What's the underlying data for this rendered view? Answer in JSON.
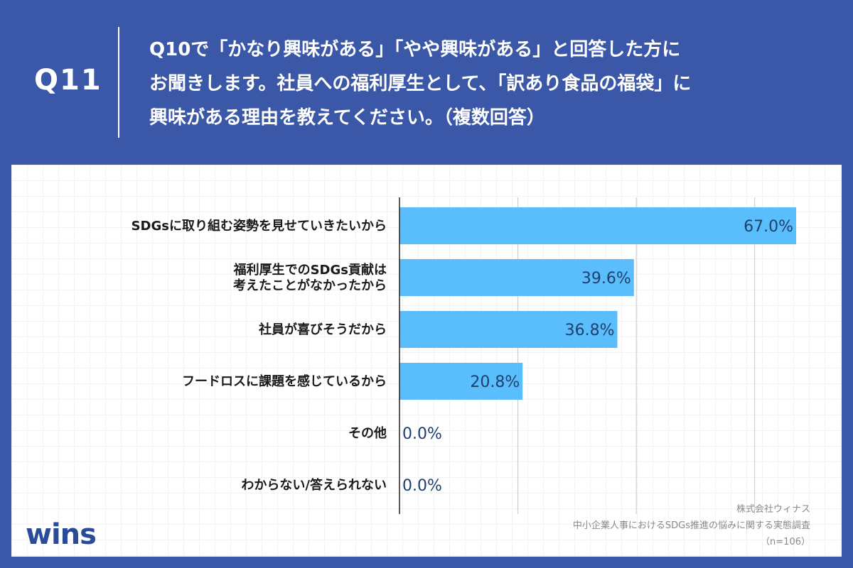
{
  "header": {
    "q_number": "Q11",
    "question_lines": [
      "Q10で「かなり興味がある」「やや興味がある」と回答した方に",
      "お聞きします。社員への福利厚生として、「訳あり食品の福袋」に",
      "興味がある理由を教えてください。（複数回答）"
    ]
  },
  "chart_data": {
    "type": "bar",
    "orientation": "horizontal",
    "categories": [
      [
        "SDGsに取り組む姿勢を見せていきたいから"
      ],
      [
        "福利厚生でのSDGs貢献は",
        "考えたことがなかったから"
      ],
      [
        "社員が喜びそうだから"
      ],
      [
        "フードロスに課題を感じているから"
      ],
      [
        "その他"
      ],
      [
        "わからない/答えられない"
      ]
    ],
    "values": [
      67.0,
      39.6,
      36.8,
      20.8,
      0.0,
      0.0
    ],
    "value_labels": [
      "67.0%",
      "39.6%",
      "36.8%",
      "20.8%",
      "0.0%",
      "0.0%"
    ],
    "xlim": [
      0,
      70
    ],
    "grid": true,
    "bar_color": "#5bbefc"
  },
  "footer": {
    "logo_text": "wins",
    "company": "株式会社ウィナス",
    "survey_title": "中小企業人事におけるSDGs推進の悩みに関する実態調査",
    "sample": "（n=106）"
  }
}
